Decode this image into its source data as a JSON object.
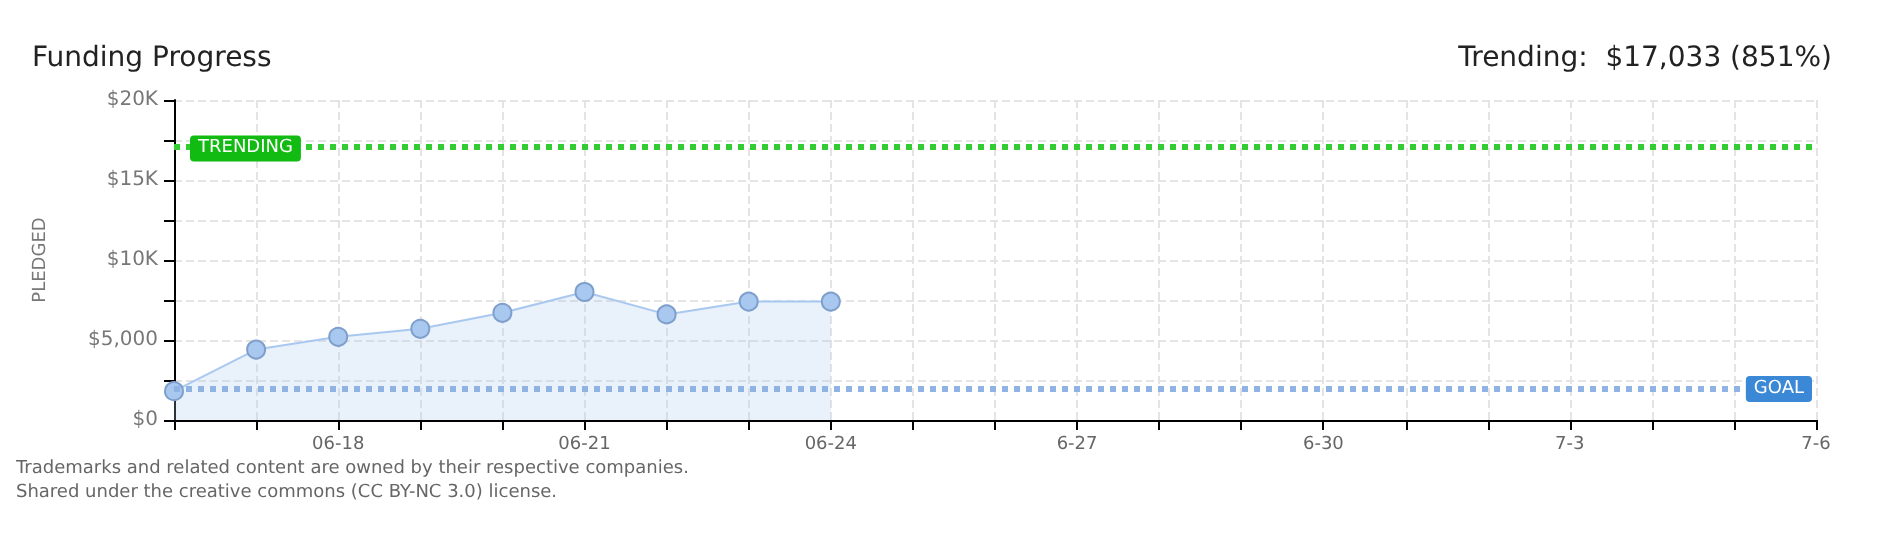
{
  "chart_data": {
    "type": "area",
    "title": "Funding Progress",
    "subtitle": "Trending:  $17,033 (851%)",
    "ylabel": "PLEDGED",
    "x": [
      "--06-16",
      "--06-17",
      "--06-18",
      "--06-19",
      "--06-20",
      "--06-21",
      "--06-22",
      "--06-23",
      "--06-24"
    ],
    "series": [
      {
        "color": "#a9c8ef",
        "values": [
          1800,
          4400,
          5200,
          5700,
          6700,
          8000,
          6600,
          7400,
          7400
        ]
      }
    ],
    "xlim": [
      "--06-16",
      "--07-06"
    ],
    "xticks": [
      {
        "value": "--06-16",
        "label": null
      },
      {
        "value": "--06-17",
        "label": null
      },
      {
        "value": "--06-18",
        "label": "06-18"
      },
      {
        "value": "--06-19",
        "label": null
      },
      {
        "value": "--06-20",
        "label": null
      },
      {
        "value": "--06-21",
        "label": "06-21"
      },
      {
        "value": "--06-22",
        "label": null
      },
      {
        "value": "--06-23",
        "label": null
      },
      {
        "value": "--06-24",
        "label": "06-24"
      },
      {
        "value": "--06-25",
        "label": null
      },
      {
        "value": "--06-26",
        "label": null
      },
      {
        "value": "--06-27",
        "label": "6-27"
      },
      {
        "value": "--06-28",
        "label": null
      },
      {
        "value": "--06-29",
        "label": null
      },
      {
        "value": "--06-30",
        "label": "6-30"
      },
      {
        "value": "--07-01",
        "label": null
      },
      {
        "value": "--07-02",
        "label": null
      },
      {
        "value": "--07-03",
        "label": "7-3"
      },
      {
        "value": "--07-04",
        "label": null
      },
      {
        "value": "--07-05",
        "label": null
      },
      {
        "value": "--07-06",
        "label": "7-6"
      }
    ],
    "ylim": [
      0,
      20000
    ],
    "yticks": [
      {
        "value": 0,
        "label": "$0"
      },
      {
        "value": 2500,
        "label": null
      },
      {
        "value": 5000,
        "label": "$5,000"
      },
      {
        "value": 7500,
        "label": null
      },
      {
        "value": 10000,
        "label": "$10K"
      },
      {
        "value": 12500,
        "label": null
      },
      {
        "value": 15000,
        "label": "$15K"
      },
      {
        "value": 17500,
        "label": null
      },
      {
        "value": 20000,
        "label": "$20K"
      }
    ],
    "ref_lines": [
      {
        "axis": "y",
        "value": 17033,
        "label": "TRENDING",
        "color": "#33cc33",
        "line_style": "dotted"
      },
      {
        "axis": "y",
        "value": 2000,
        "label": "GOAL",
        "color": "#8fb4e3",
        "line_style": "dotted"
      }
    ],
    "grid": true,
    "marker": "circle",
    "annotations": [
      "Trademarks and related content are owned by their respective companies.",
      "Shared under the creative commons (CC BY-NC 3.0) license."
    ]
  }
}
